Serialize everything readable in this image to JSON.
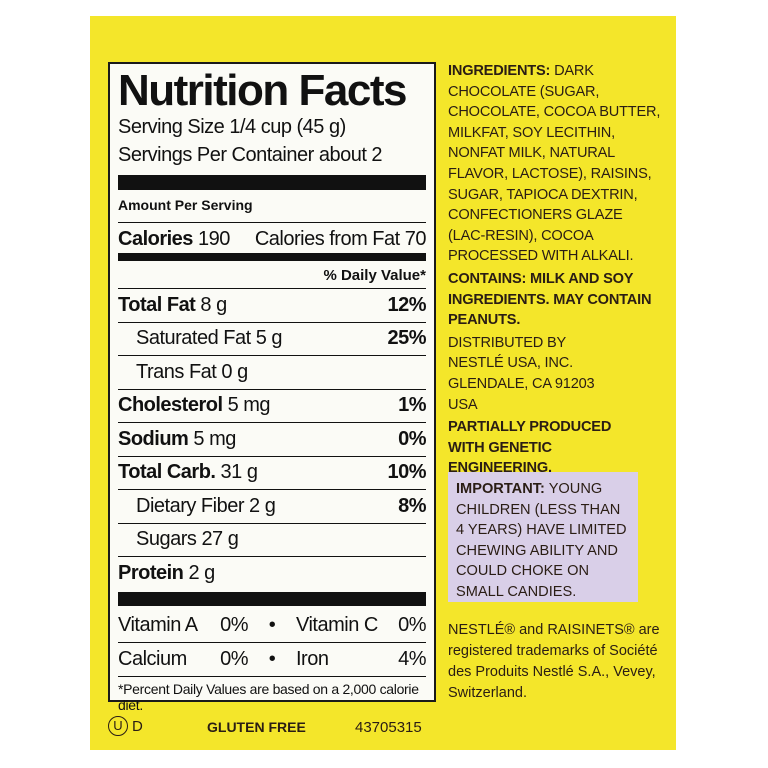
{
  "nutrition": {
    "title": "Nutrition Facts",
    "serving_size": "Serving Size 1/4 cup (45 g)",
    "servings_per_container": "Servings Per Container about 2",
    "amount_per_serving": "Amount Per Serving",
    "calories_label": "Calories",
    "calories": "190",
    "calories_from_fat": "Calories from Fat 70",
    "daily_value_header": "% Daily Value*",
    "rows": [
      {
        "label": "Total Fat",
        "amount": "8 g",
        "dv": "12%"
      },
      {
        "label": "Saturated Fat",
        "amount": "5 g",
        "dv": "25%"
      },
      {
        "label": "Trans Fat",
        "amount": "0 g",
        "dv": ""
      },
      {
        "label": "Cholesterol",
        "amount": "5 mg",
        "dv": "1%"
      },
      {
        "label": "Sodium",
        "amount": "5 mg",
        "dv": "0%"
      },
      {
        "label": "Total Carb.",
        "amount": "31 g",
        "dv": "10%"
      },
      {
        "label": "Dietary Fiber",
        "amount": "2 g",
        "dv": "8%"
      },
      {
        "label": "Sugars",
        "amount": "27 g",
        "dv": ""
      },
      {
        "label": "Protein",
        "amount": "2 g",
        "dv": ""
      }
    ],
    "vitamins": [
      {
        "left": "Vitamin A",
        "left_val": "0%",
        "right": "Vitamin C",
        "right_val": "0%"
      },
      {
        "left": "Calcium",
        "left_val": "0%",
        "right": "Iron",
        "right_val": "4%"
      }
    ],
    "bullet": "•",
    "footnote": "*Percent Daily Values are based on a 2,000 calorie diet."
  },
  "ingredients": {
    "label": "INGREDIENTS:",
    "text": "DARK CHOCOLATE (SUGAR, CHOCOLATE, COCOA BUTTER, MILKFAT, SOY LECITHIN, NONFAT MILK, NATURAL FLAVOR, LACTOSE), RAISINS, SUGAR, TAPIOCA DEXTRIN, CONFECTIONERS GLAZE (LAC-RESIN), COCOA PROCESSED WITH ALKALI.",
    "contains": "CONTAINS: MILK AND SOY INGREDIENTS. MAY CONTAIN PEANUTS.",
    "distributed": "DISTRIBUTED BY NESTLÉ USA, INC. GLENDALE, CA 91203 USA",
    "ge": "PARTIALLY PRODUCED WITH GENETIC ENGINEERING."
  },
  "important": {
    "label": "IMPORTANT:",
    "text": "YOUNG CHILDREN (LESS THAN 4 YEARS) HAVE LIMITED CHEWING ABILITY AND COULD CHOKE ON SMALL CANDIES."
  },
  "trademark": "NESTLÉ® and RAISINETS® are registered trademarks of Société des Produits Nestlé S.A., Vevey, Switzerland.",
  "bottom": {
    "kosher_symbol": "U",
    "kosher_letter": "D",
    "gluten_free": "GLUTEN FREE",
    "code": "43705315"
  },
  "colors": {
    "package_yellow": "#f4e62a",
    "warning_box": "#d9cfe8"
  }
}
